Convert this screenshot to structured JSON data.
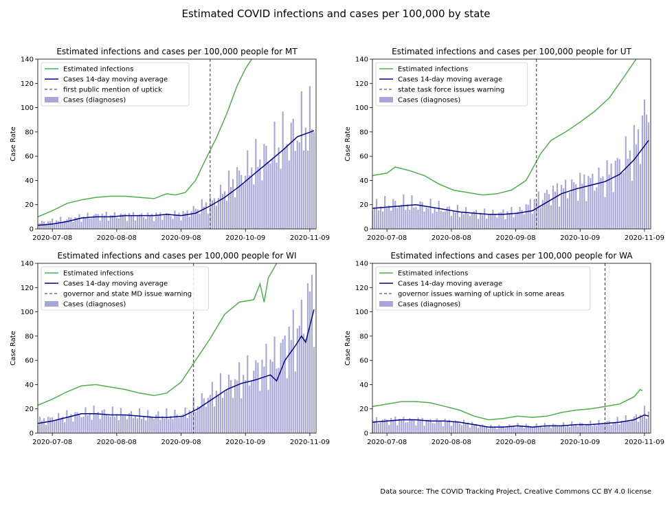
{
  "figure": {
    "title": "Estimated COVID infections and cases per 100,000 by state",
    "source": "Data source: The COVID Tracking Project, Creative Commons CC BY 4.0 license"
  },
  "chart_data": [
    {
      "type": "bar",
      "state": "MT",
      "title": "Estimated infections and cases per 100,000 people for MT",
      "xlabel": "",
      "ylabel": "Case Rate",
      "x_range": [
        "2020-07-01",
        "2020-11-12"
      ],
      "ylim": [
        0,
        140
      ],
      "yticks": [
        0,
        20,
        40,
        60,
        80,
        100,
        120,
        140
      ],
      "xticks": [
        "2020-07-08",
        "2020-08-08",
        "2020-09-08",
        "2020-10-09",
        "2020-11-09"
      ],
      "legend_position": "top-left",
      "colors": {
        "infections": "#4daf4a",
        "average": "#00008b",
        "bars": "#a6a6d9",
        "vline": "#333333"
      },
      "legend": [
        "Estimated infections",
        "Cases 14-day moving average",
        "first public mention of uptick",
        "Cases (diagnoses)"
      ],
      "event_date": "2020-09-22",
      "infections": [
        [
          "2020-07-01",
          10
        ],
        [
          "2020-07-08",
          15
        ],
        [
          "2020-07-15",
          21
        ],
        [
          "2020-07-22",
          24
        ],
        [
          "2020-07-29",
          26
        ],
        [
          "2020-08-05",
          27
        ],
        [
          "2020-08-12",
          27
        ],
        [
          "2020-08-19",
          26
        ],
        [
          "2020-08-26",
          25
        ],
        [
          "2020-09-01",
          29
        ],
        [
          "2020-09-05",
          28
        ],
        [
          "2020-09-10",
          30
        ],
        [
          "2020-09-15",
          40
        ],
        [
          "2020-09-20",
          58
        ],
        [
          "2020-09-25",
          75
        ],
        [
          "2020-09-30",
          95
        ],
        [
          "2020-10-05",
          118
        ],
        [
          "2020-10-09",
          132
        ],
        [
          "2020-10-12",
          140
        ]
      ],
      "average": [
        [
          "2020-07-01",
          3
        ],
        [
          "2020-07-08",
          4
        ],
        [
          "2020-07-15",
          6
        ],
        [
          "2020-07-22",
          9
        ],
        [
          "2020-07-29",
          10
        ],
        [
          "2020-08-05",
          10
        ],
        [
          "2020-08-12",
          11
        ],
        [
          "2020-08-19",
          11
        ],
        [
          "2020-08-26",
          11
        ],
        [
          "2020-09-01",
          12
        ],
        [
          "2020-09-08",
          11
        ],
        [
          "2020-09-15",
          13
        ],
        [
          "2020-09-22",
          19
        ],
        [
          "2020-09-29",
          26
        ],
        [
          "2020-10-06",
          35
        ],
        [
          "2020-10-13",
          45
        ],
        [
          "2020-10-20",
          55
        ],
        [
          "2020-10-27",
          65
        ],
        [
          "2020-11-03",
          76
        ],
        [
          "2020-11-11",
          81
        ]
      ],
      "cases_anchors": [
        [
          "2020-07-01",
          5
        ],
        [
          "2020-07-15",
          8
        ],
        [
          "2020-07-29",
          11
        ],
        [
          "2020-08-12",
          11
        ],
        [
          "2020-08-26",
          11
        ],
        [
          "2020-09-09",
          12
        ],
        [
          "2020-09-23",
          22
        ],
        [
          "2020-10-07",
          45
        ],
        [
          "2020-10-21",
          62
        ],
        [
          "2020-11-04",
          80
        ],
        [
          "2020-11-11",
          88
        ]
      ]
    },
    {
      "type": "bar",
      "state": "UT",
      "title": "Estimated infections and cases per 100,000 people for UT",
      "xlabel": "",
      "ylabel": "Case Rate",
      "x_range": [
        "2020-07-01",
        "2020-11-12"
      ],
      "ylim": [
        0,
        140
      ],
      "yticks": [
        0,
        20,
        40,
        60,
        80,
        100,
        120,
        140
      ],
      "xticks": [
        "2020-07-08",
        "2020-08-08",
        "2020-09-08",
        "2020-10-09",
        "2020-11-09"
      ],
      "legend_position": "top-left",
      "colors": {
        "infections": "#4daf4a",
        "average": "#00008b",
        "bars": "#a6a6d9",
        "vline": "#333333"
      },
      "legend": [
        "Estimated infections",
        "Cases 14-day moving average",
        "state task force issues warning",
        "Cases (diagnoses)"
      ],
      "event_date": "2020-09-18",
      "infections": [
        [
          "2020-07-01",
          44
        ],
        [
          "2020-07-08",
          46
        ],
        [
          "2020-07-12",
          51
        ],
        [
          "2020-07-19",
          48
        ],
        [
          "2020-07-26",
          44
        ],
        [
          "2020-08-02",
          37
        ],
        [
          "2020-08-09",
          32
        ],
        [
          "2020-08-16",
          30
        ],
        [
          "2020-08-23",
          28
        ],
        [
          "2020-08-30",
          29
        ],
        [
          "2020-09-06",
          32
        ],
        [
          "2020-09-13",
          40
        ],
        [
          "2020-09-20",
          62
        ],
        [
          "2020-09-25",
          73
        ],
        [
          "2020-10-02",
          80
        ],
        [
          "2020-10-09",
          88
        ],
        [
          "2020-10-16",
          97
        ],
        [
          "2020-10-23",
          108
        ],
        [
          "2020-10-30",
          125
        ],
        [
          "2020-11-05",
          140
        ]
      ],
      "average": [
        [
          "2020-07-01",
          17
        ],
        [
          "2020-07-08",
          18
        ],
        [
          "2020-07-15",
          19
        ],
        [
          "2020-07-22",
          20
        ],
        [
          "2020-07-29",
          18
        ],
        [
          "2020-08-05",
          16
        ],
        [
          "2020-08-12",
          14
        ],
        [
          "2020-08-19",
          13
        ],
        [
          "2020-08-26",
          12
        ],
        [
          "2020-09-02",
          12
        ],
        [
          "2020-09-09",
          13
        ],
        [
          "2020-09-16",
          15
        ],
        [
          "2020-09-23",
          22
        ],
        [
          "2020-09-30",
          29
        ],
        [
          "2020-10-07",
          33
        ],
        [
          "2020-10-14",
          36
        ],
        [
          "2020-10-21",
          39
        ],
        [
          "2020-10-28",
          45
        ],
        [
          "2020-11-04",
          57
        ],
        [
          "2020-11-11",
          73
        ]
      ],
      "cases_anchors": [
        [
          "2020-07-01",
          18
        ],
        [
          "2020-07-15",
          21
        ],
        [
          "2020-07-29",
          18
        ],
        [
          "2020-08-12",
          14
        ],
        [
          "2020-08-26",
          12
        ],
        [
          "2020-09-09",
          14
        ],
        [
          "2020-09-23",
          28
        ],
        [
          "2020-10-07",
          36
        ],
        [
          "2020-10-21",
          42
        ],
        [
          "2020-11-04",
          65
        ],
        [
          "2020-11-11",
          100
        ]
      ]
    },
    {
      "type": "bar",
      "state": "WI",
      "title": "Estimated infections and cases per 100,000 people for WI",
      "xlabel": "",
      "ylabel": "Case Rate",
      "x_range": [
        "2020-07-01",
        "2020-11-12"
      ],
      "ylim": [
        0,
        140
      ],
      "yticks": [
        0,
        20,
        40,
        60,
        80,
        100,
        120,
        140
      ],
      "xticks": [
        "2020-07-08",
        "2020-08-08",
        "2020-09-08",
        "2020-10-09",
        "2020-11-09"
      ],
      "legend_position": "top-left",
      "colors": {
        "infections": "#4daf4a",
        "average": "#00008b",
        "bars": "#a6a6d9",
        "vline": "#333333"
      },
      "legend": [
        "Estimated infections",
        "Cases 14-day moving average",
        "governor and state MD issue warning",
        "Cases (diagnoses)"
      ],
      "event_date": "2020-09-14",
      "infections": [
        [
          "2020-07-01",
          23
        ],
        [
          "2020-07-08",
          28
        ],
        [
          "2020-07-15",
          34
        ],
        [
          "2020-07-22",
          39
        ],
        [
          "2020-07-29",
          40
        ],
        [
          "2020-08-05",
          38
        ],
        [
          "2020-08-12",
          36
        ],
        [
          "2020-08-19",
          33
        ],
        [
          "2020-08-26",
          31
        ],
        [
          "2020-09-01",
          33
        ],
        [
          "2020-09-08",
          42
        ],
        [
          "2020-09-15",
          60
        ],
        [
          "2020-09-22",
          78
        ],
        [
          "2020-09-29",
          98
        ],
        [
          "2020-10-06",
          108
        ],
        [
          "2020-10-13",
          110
        ],
        [
          "2020-10-16",
          123
        ],
        [
          "2020-10-18",
          108
        ],
        [
          "2020-10-20",
          128
        ],
        [
          "2020-10-24",
          140
        ]
      ],
      "average": [
        [
          "2020-07-01",
          8
        ],
        [
          "2020-07-08",
          10
        ],
        [
          "2020-07-15",
          13
        ],
        [
          "2020-07-22",
          16
        ],
        [
          "2020-07-29",
          16
        ],
        [
          "2020-08-05",
          15
        ],
        [
          "2020-08-12",
          15
        ],
        [
          "2020-08-19",
          14
        ],
        [
          "2020-08-26",
          13
        ],
        [
          "2020-09-02",
          13
        ],
        [
          "2020-09-09",
          14
        ],
        [
          "2020-09-16",
          20
        ],
        [
          "2020-09-23",
          28
        ],
        [
          "2020-09-30",
          36
        ],
        [
          "2020-10-07",
          41
        ],
        [
          "2020-10-14",
          44
        ],
        [
          "2020-10-21",
          48
        ],
        [
          "2020-10-24",
          43
        ],
        [
          "2020-10-28",
          60
        ],
        [
          "2020-11-02",
          72
        ],
        [
          "2020-11-05",
          80
        ],
        [
          "2020-11-07",
          75
        ],
        [
          "2020-11-11",
          102
        ]
      ],
      "cases_anchors": [
        [
          "2020-07-01",
          10
        ],
        [
          "2020-07-15",
          14
        ],
        [
          "2020-07-29",
          17
        ],
        [
          "2020-08-12",
          15
        ],
        [
          "2020-08-26",
          14
        ],
        [
          "2020-09-09",
          15
        ],
        [
          "2020-09-23",
          32
        ],
        [
          "2020-10-07",
          45
        ],
        [
          "2020-10-21",
          58
        ],
        [
          "2020-11-04",
          85
        ],
        [
          "2020-11-11",
          120
        ]
      ]
    },
    {
      "type": "bar",
      "state": "WA",
      "title": "Estimated infections and cases per 100,000 people for WA",
      "xlabel": "",
      "ylabel": "Case Rate",
      "x_range": [
        "2020-07-01",
        "2020-11-12"
      ],
      "ylim": [
        0,
        140
      ],
      "yticks": [
        0,
        20,
        40,
        60,
        80,
        100,
        120,
        140
      ],
      "xticks": [
        "2020-07-08",
        "2020-08-08",
        "2020-09-08",
        "2020-10-09",
        "2020-11-09"
      ],
      "legend_position": "top-left",
      "colors": {
        "infections": "#4daf4a",
        "average": "#00008b",
        "bars": "#a6a6d9",
        "vline": "#333333"
      },
      "legend": [
        "Estimated infections",
        "Cases 14-day moving average",
        "governor issues warning of uptick in some areas",
        "Cases (diagnoses)"
      ],
      "event_date": "2020-10-21",
      "infections": [
        [
          "2020-07-01",
          22
        ],
        [
          "2020-07-08",
          24
        ],
        [
          "2020-07-15",
          26
        ],
        [
          "2020-07-22",
          26
        ],
        [
          "2020-07-29",
          25
        ],
        [
          "2020-08-05",
          22
        ],
        [
          "2020-08-12",
          19
        ],
        [
          "2020-08-19",
          14
        ],
        [
          "2020-08-26",
          11
        ],
        [
          "2020-09-02",
          12
        ],
        [
          "2020-09-09",
          14
        ],
        [
          "2020-09-16",
          13
        ],
        [
          "2020-09-23",
          14
        ],
        [
          "2020-09-30",
          17
        ],
        [
          "2020-10-07",
          19
        ],
        [
          "2020-10-14",
          20
        ],
        [
          "2020-10-21",
          22
        ],
        [
          "2020-10-28",
          24
        ],
        [
          "2020-11-04",
          30
        ],
        [
          "2020-11-07",
          36
        ],
        [
          "2020-11-08",
          35
        ]
      ],
      "average": [
        [
          "2020-07-01",
          9
        ],
        [
          "2020-07-08",
          10
        ],
        [
          "2020-07-15",
          11
        ],
        [
          "2020-07-22",
          11
        ],
        [
          "2020-07-29",
          10
        ],
        [
          "2020-08-05",
          10
        ],
        [
          "2020-08-12",
          9
        ],
        [
          "2020-08-19",
          7
        ],
        [
          "2020-08-26",
          5
        ],
        [
          "2020-09-02",
          5
        ],
        [
          "2020-09-09",
          6
        ],
        [
          "2020-09-16",
          5
        ],
        [
          "2020-09-23",
          6
        ],
        [
          "2020-09-30",
          6
        ],
        [
          "2020-10-07",
          7
        ],
        [
          "2020-10-14",
          7
        ],
        [
          "2020-10-21",
          8
        ],
        [
          "2020-10-28",
          9
        ],
        [
          "2020-11-04",
          11
        ],
        [
          "2020-11-09",
          15
        ],
        [
          "2020-11-11",
          14
        ]
      ],
      "cases_anchors": [
        [
          "2020-07-01",
          10
        ],
        [
          "2020-07-15",
          11
        ],
        [
          "2020-07-29",
          10
        ],
        [
          "2020-08-12",
          9
        ],
        [
          "2020-08-26",
          5
        ],
        [
          "2020-09-09",
          6
        ],
        [
          "2020-09-23",
          6
        ],
        [
          "2020-10-07",
          7
        ],
        [
          "2020-10-21",
          8
        ],
        [
          "2020-11-04",
          12
        ],
        [
          "2020-11-11",
          18
        ]
      ]
    }
  ]
}
